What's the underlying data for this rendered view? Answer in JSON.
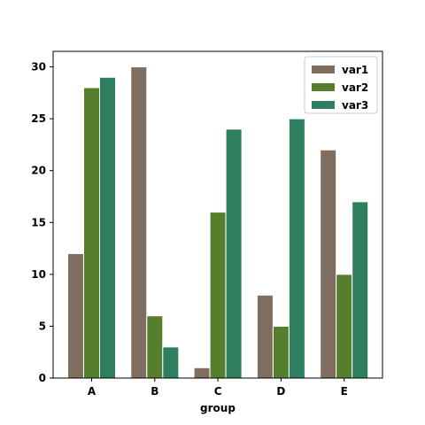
{
  "chart_data": {
    "type": "bar",
    "categories": [
      "A",
      "B",
      "C",
      "D",
      "E"
    ],
    "series": [
      {
        "name": "var1",
        "values": [
          12,
          30,
          1,
          8,
          22
        ],
        "color": "#7f6d5f"
      },
      {
        "name": "var2",
        "values": [
          28,
          6,
          16,
          5,
          10
        ],
        "color": "#557f2d"
      },
      {
        "name": "var3",
        "values": [
          29,
          3,
          24,
          25,
          17
        ],
        "color": "#2d7f5e"
      }
    ],
    "title": "",
    "xlabel": "group",
    "ylabel": "",
    "ylim": [
      0,
      31.5
    ],
    "yticks": [
      0,
      5,
      10,
      15,
      20,
      25,
      30
    ],
    "grid": false,
    "legend_position": "top-right"
  }
}
